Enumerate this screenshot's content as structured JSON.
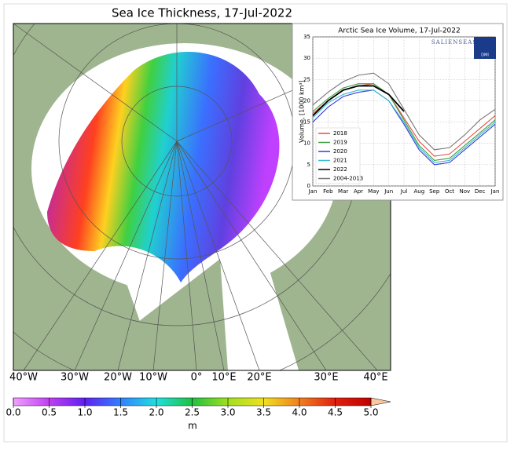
{
  "map": {
    "title": "Sea Ice Thickness, 17-Jul-2022",
    "lon_labels": [
      "40°W",
      "30°W",
      "20°W",
      "10°W",
      "0°",
      "10°E",
      "20°E",
      "30°E",
      "40°E"
    ],
    "colorbar": {
      "ticks": [
        {
          "value": 0,
          "label": "0.0"
        },
        0.5,
        {
          "value": 1,
          "label": "1.0"
        },
        1.5,
        {
          "value": 2,
          "label": "2.0"
        },
        2.5,
        {
          "value": 3,
          "label": "3.0"
        },
        3.5,
        {
          "value": 4,
          "label": "4.0"
        },
        4.5,
        {
          "value": 5,
          "label": "5.0"
        }
      ],
      "lim": [
        0,
        5
      ],
      "label": "m"
    }
  },
  "chart_data": {
    "type": "line",
    "title": "Arctic Sea Ice Volume, 17-Jul-2022",
    "y_label": "Volume, [1000 km³]",
    "annotations": [
      "SALIENSEAS",
      "DMI"
    ],
    "categories": [
      "Jan",
      "Feb",
      "Mar",
      "Apr",
      "May",
      "Jun",
      "Jul",
      "Aug",
      "Sep",
      "Oct",
      "Nov",
      "Dec",
      "Jan"
    ],
    "ylim": [
      0,
      35
    ],
    "yticks": [
      0,
      5,
      10,
      15,
      20,
      25,
      30,
      35
    ],
    "grid": true,
    "legend": "lower left",
    "series": [
      {
        "name": "2018",
        "color": "#e0504a",
        "values": [
          17,
          20,
          22.5,
          23.5,
          24,
          21.5,
          16,
          10.5,
          7,
          7.5,
          10.5,
          13.5,
          16.5
        ]
      },
      {
        "name": "2019",
        "color": "#3f9f3f",
        "values": [
          17.5,
          20.5,
          23,
          24,
          24,
          21.5,
          15.5,
          9.5,
          6,
          6.5,
          9.5,
          12.5,
          15.5
        ]
      },
      {
        "name": "2020",
        "color": "#3a3ad8",
        "values": [
          15,
          18.5,
          21,
          22,
          22.5,
          20,
          14.5,
          8.5,
          5,
          5.5,
          8.5,
          11.5,
          14.5
        ]
      },
      {
        "name": "2021",
        "color": "#38bcd0",
        "values": [
          16,
          19.5,
          21.5,
          22.5,
          22.5,
          20,
          15,
          9,
          5.5,
          6,
          9,
          12,
          15
        ]
      },
      {
        "name": "2022",
        "color": "#000000",
        "values": [
          16.5,
          20,
          22.5,
          23.5,
          23.5,
          21.5,
          17.5,
          null,
          null,
          null,
          null,
          null,
          null
        ]
      },
      {
        "name": "2004-2013",
        "color": "#777777",
        "values": [
          19,
          22,
          24.5,
          26,
          26.5,
          24,
          18,
          12,
          8.5,
          9,
          12,
          15.5,
          18
        ]
      }
    ]
  }
}
